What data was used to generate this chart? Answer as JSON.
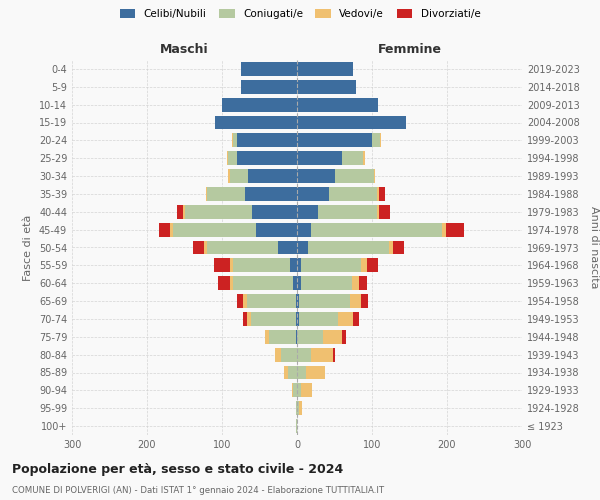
{
  "age_groups": [
    "100+",
    "95-99",
    "90-94",
    "85-89",
    "80-84",
    "75-79",
    "70-74",
    "65-69",
    "60-64",
    "55-59",
    "50-54",
    "45-49",
    "40-44",
    "35-39",
    "30-34",
    "25-29",
    "20-24",
    "15-19",
    "10-14",
    "5-9",
    "0-4"
  ],
  "birth_years": [
    "≤ 1923",
    "1924-1928",
    "1929-1933",
    "1934-1938",
    "1939-1943",
    "1944-1948",
    "1949-1953",
    "1954-1958",
    "1959-1963",
    "1964-1968",
    "1969-1973",
    "1974-1978",
    "1979-1983",
    "1984-1988",
    "1989-1993",
    "1994-1998",
    "1999-2003",
    "2004-2008",
    "2009-2013",
    "2014-2018",
    "2019-2023"
  ],
  "male_celibi": [
    0,
    0,
    0,
    0,
    0,
    2,
    2,
    2,
    5,
    10,
    25,
    55,
    60,
    70,
    65,
    80,
    80,
    110,
    100,
    75,
    75
  ],
  "male_coniugati": [
    1,
    2,
    5,
    12,
    22,
    35,
    60,
    65,
    80,
    75,
    95,
    110,
    90,
    50,
    25,
    12,
    5,
    0,
    0,
    0,
    0
  ],
  "male_vedovi": [
    0,
    0,
    2,
    5,
    8,
    6,
    5,
    5,
    5,
    4,
    4,
    4,
    2,
    2,
    2,
    2,
    2,
    0,
    0,
    0,
    0
  ],
  "male_divorziati": [
    0,
    0,
    0,
    0,
    0,
    0,
    5,
    8,
    15,
    22,
    15,
    15,
    8,
    0,
    0,
    0,
    0,
    0,
    0,
    0,
    0
  ],
  "fem_nubili": [
    0,
    0,
    0,
    0,
    0,
    0,
    2,
    2,
    5,
    5,
    15,
    18,
    28,
    42,
    50,
    60,
    100,
    145,
    108,
    78,
    75
  ],
  "fem_coniugate": [
    0,
    2,
    5,
    12,
    18,
    35,
    52,
    68,
    68,
    80,
    108,
    175,
    78,
    65,
    52,
    28,
    10,
    0,
    0,
    0,
    0
  ],
  "fem_vedove": [
    0,
    5,
    15,
    25,
    30,
    25,
    20,
    15,
    10,
    8,
    5,
    5,
    3,
    2,
    2,
    2,
    2,
    0,
    0,
    0,
    0
  ],
  "fem_divorziate": [
    0,
    0,
    0,
    0,
    2,
    5,
    8,
    10,
    10,
    15,
    15,
    25,
    15,
    8,
    0,
    0,
    0,
    0,
    0,
    0,
    0
  ],
  "color_celibi": "#3d6d9e",
  "color_coniugati": "#b5c9a0",
  "color_vedovi": "#f0c070",
  "color_divorziati": "#cc2222",
  "xlim": 300,
  "title": "Popolazione per età, sesso e stato civile - 2024",
  "subtitle": "COMUNE DI POLVERIGI (AN) - Dati ISTAT 1° gennaio 2024 - Elaborazione TUTTITALIA.IT",
  "ylabel_left": "Fasce di età",
  "ylabel_right": "Anni di nascita",
  "label_maschi": "Maschi",
  "label_femmine": "Femmine",
  "legend_labels": [
    "Celibi/Nubili",
    "Coniugati/e",
    "Vedovi/e",
    "Divorziati/e"
  ],
  "bg_color": "#f9f9f9",
  "grid_color": "#cccccc"
}
